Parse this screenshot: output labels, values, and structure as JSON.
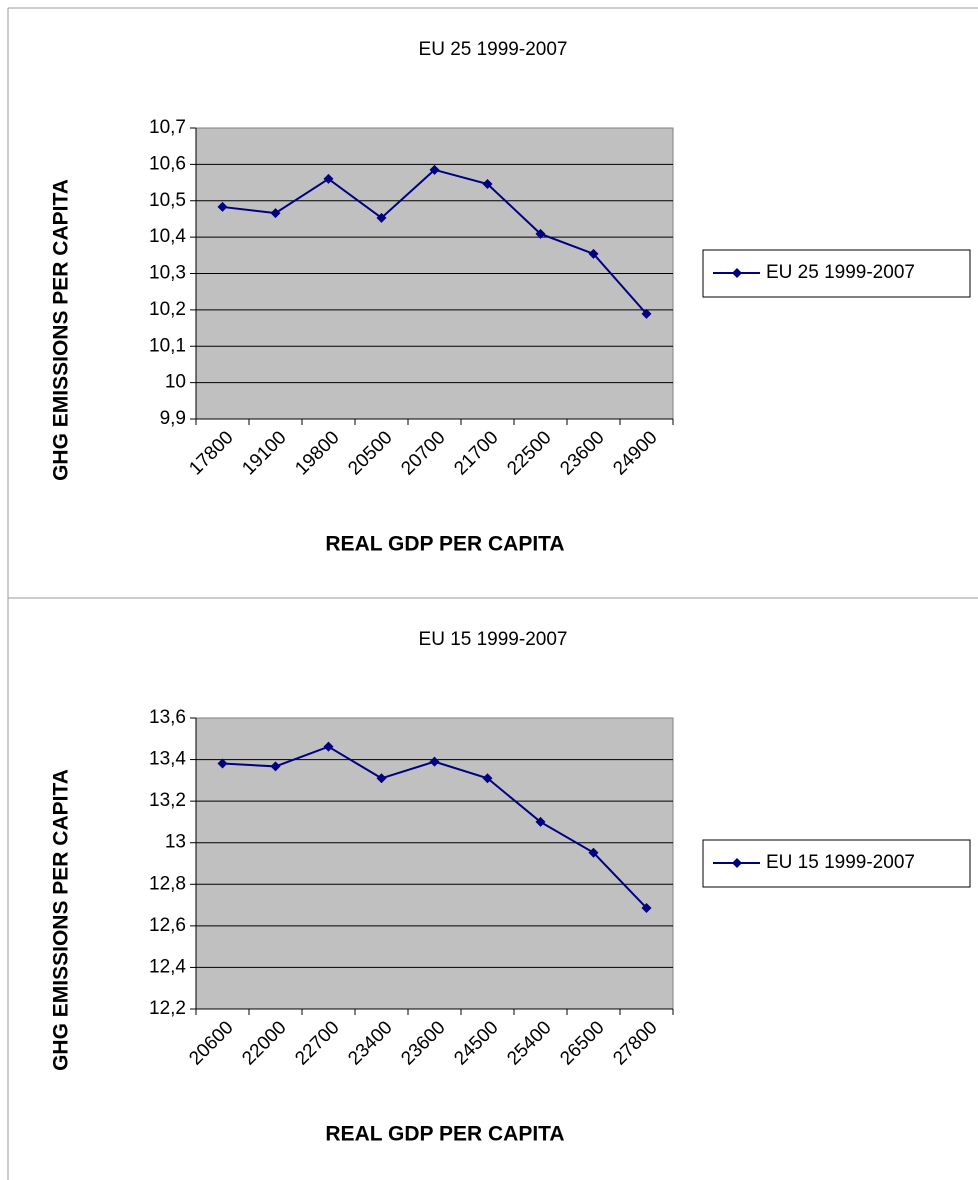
{
  "chart_data": [
    {
      "type": "line",
      "title": "EU 25 1999-2007",
      "x_label": "REAL GDP PER CAPITA",
      "y_label": "GHG EMISSIONS PER CAPITA",
      "categories": [
        "17800",
        "19100",
        "19800",
        "20500",
        "20700",
        "21700",
        "22500",
        "23600",
        "24900"
      ],
      "series": [
        {
          "name": "EU 25 1999-2007",
          "color": "#000080",
          "values": [
            10.483,
            10.466,
            10.56,
            10.453,
            10.585,
            10.546,
            10.409,
            10.354,
            10.189
          ]
        }
      ],
      "ylim": [
        9.9,
        10.7
      ],
      "yticks": [
        {
          "value": 9.9,
          "label": "9,9"
        },
        10,
        {
          "value": 10.1,
          "label": "10,1"
        },
        {
          "value": 10.2,
          "label": "10,2"
        },
        {
          "value": 10.3,
          "label": "10,3"
        },
        {
          "value": 10.4,
          "label": "10,4"
        },
        {
          "value": 10.5,
          "label": "10,5"
        },
        {
          "value": 10.6,
          "label": "10,6"
        },
        {
          "value": 10.7,
          "label": "10,7"
        }
      ],
      "grid": true,
      "legend": "right",
      "plot_background": "#c0c0c0"
    },
    {
      "type": "line",
      "title": "EU 15 1999-2007",
      "x_label": "REAL GDP PER CAPITA",
      "y_label": "GHG EMISSIONS PER CAPITA",
      "categories": [
        "20600",
        "22000",
        "22700",
        "23400",
        "23600",
        "24500",
        "25400",
        "26500",
        "27800"
      ],
      "series": [
        {
          "name": "EU 15 1999-2007",
          "color": "#000080",
          "values": [
            13.381,
            13.367,
            13.462,
            13.31,
            13.39,
            13.31,
            13.1,
            12.952,
            12.686
          ]
        }
      ],
      "ylim": [
        12.2,
        13.6
      ],
      "yticks": [
        {
          "value": 12.2,
          "label": "12,2"
        },
        {
          "value": 12.4,
          "label": "12,4"
        },
        {
          "value": 12.6,
          "label": "12,6"
        },
        {
          "value": 12.8,
          "label": "12,8"
        },
        13,
        {
          "value": 13.2,
          "label": "13,2"
        },
        {
          "value": 13.4,
          "label": "13,4"
        },
        {
          "value": 13.6,
          "label": "13,6"
        }
      ],
      "grid": true,
      "legend": "right",
      "plot_background": "#c0c0c0"
    }
  ]
}
